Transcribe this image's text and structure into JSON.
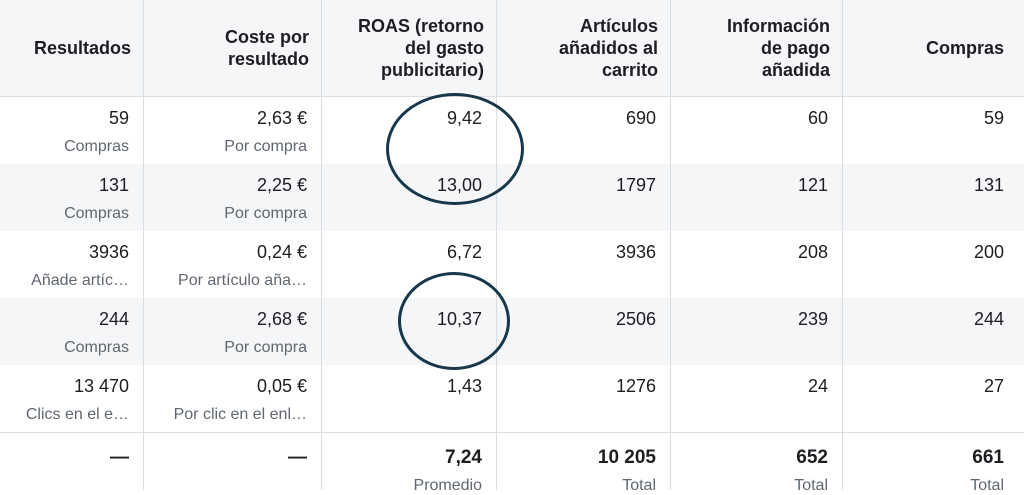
{
  "headers": [
    "Resultados",
    "Coste por\nresultado",
    "ROAS (retorno\ndel gasto\npublicitario)",
    "Artículos\nañadidos al\ncarrito",
    "Información\nde pago\nañadida",
    "Compras"
  ],
  "rows": [
    {
      "results": "59",
      "results_type": "Compras",
      "cost": "2,63 €",
      "cost_type": "Por compra",
      "roas": "9,42",
      "cart": "690",
      "payment": "60",
      "purchases": "59"
    },
    {
      "results": "131",
      "results_type": "Compras",
      "cost": "2,25 €",
      "cost_type": "Por compra",
      "roas": "13,00",
      "cart": "1797",
      "payment": "121",
      "purchases": "131"
    },
    {
      "results": "3936",
      "results_type": "Añade artíc…",
      "cost": "0,24 €",
      "cost_type": "Por artículo aña…",
      "roas": "6,72",
      "cart": "3936",
      "payment": "208",
      "purchases": "200"
    },
    {
      "results": "244",
      "results_type": "Compras",
      "cost": "2,68 €",
      "cost_type": "Por compra",
      "roas": "10,37",
      "cart": "2506",
      "payment": "239",
      "purchases": "244"
    },
    {
      "results": "13 470",
      "results_type": "Clics en el e…",
      "cost": "0,05 €",
      "cost_type": "Por clic en el enl…",
      "roas": "1,43",
      "cart": "1276",
      "payment": "24",
      "purchases": "27"
    }
  ],
  "totals": {
    "results": "—",
    "cost": "—",
    "roas": "7,24",
    "roas_label": "Promedio",
    "cart": "10 205",
    "cart_label": "Total",
    "payment": "652",
    "payment_label": "Total",
    "purchases": "661",
    "purchases_label": "Total"
  },
  "colors": {
    "annotation_circle": "#17374a",
    "row_shade": "#f5f6f7",
    "secondary_text": "#606770"
  }
}
